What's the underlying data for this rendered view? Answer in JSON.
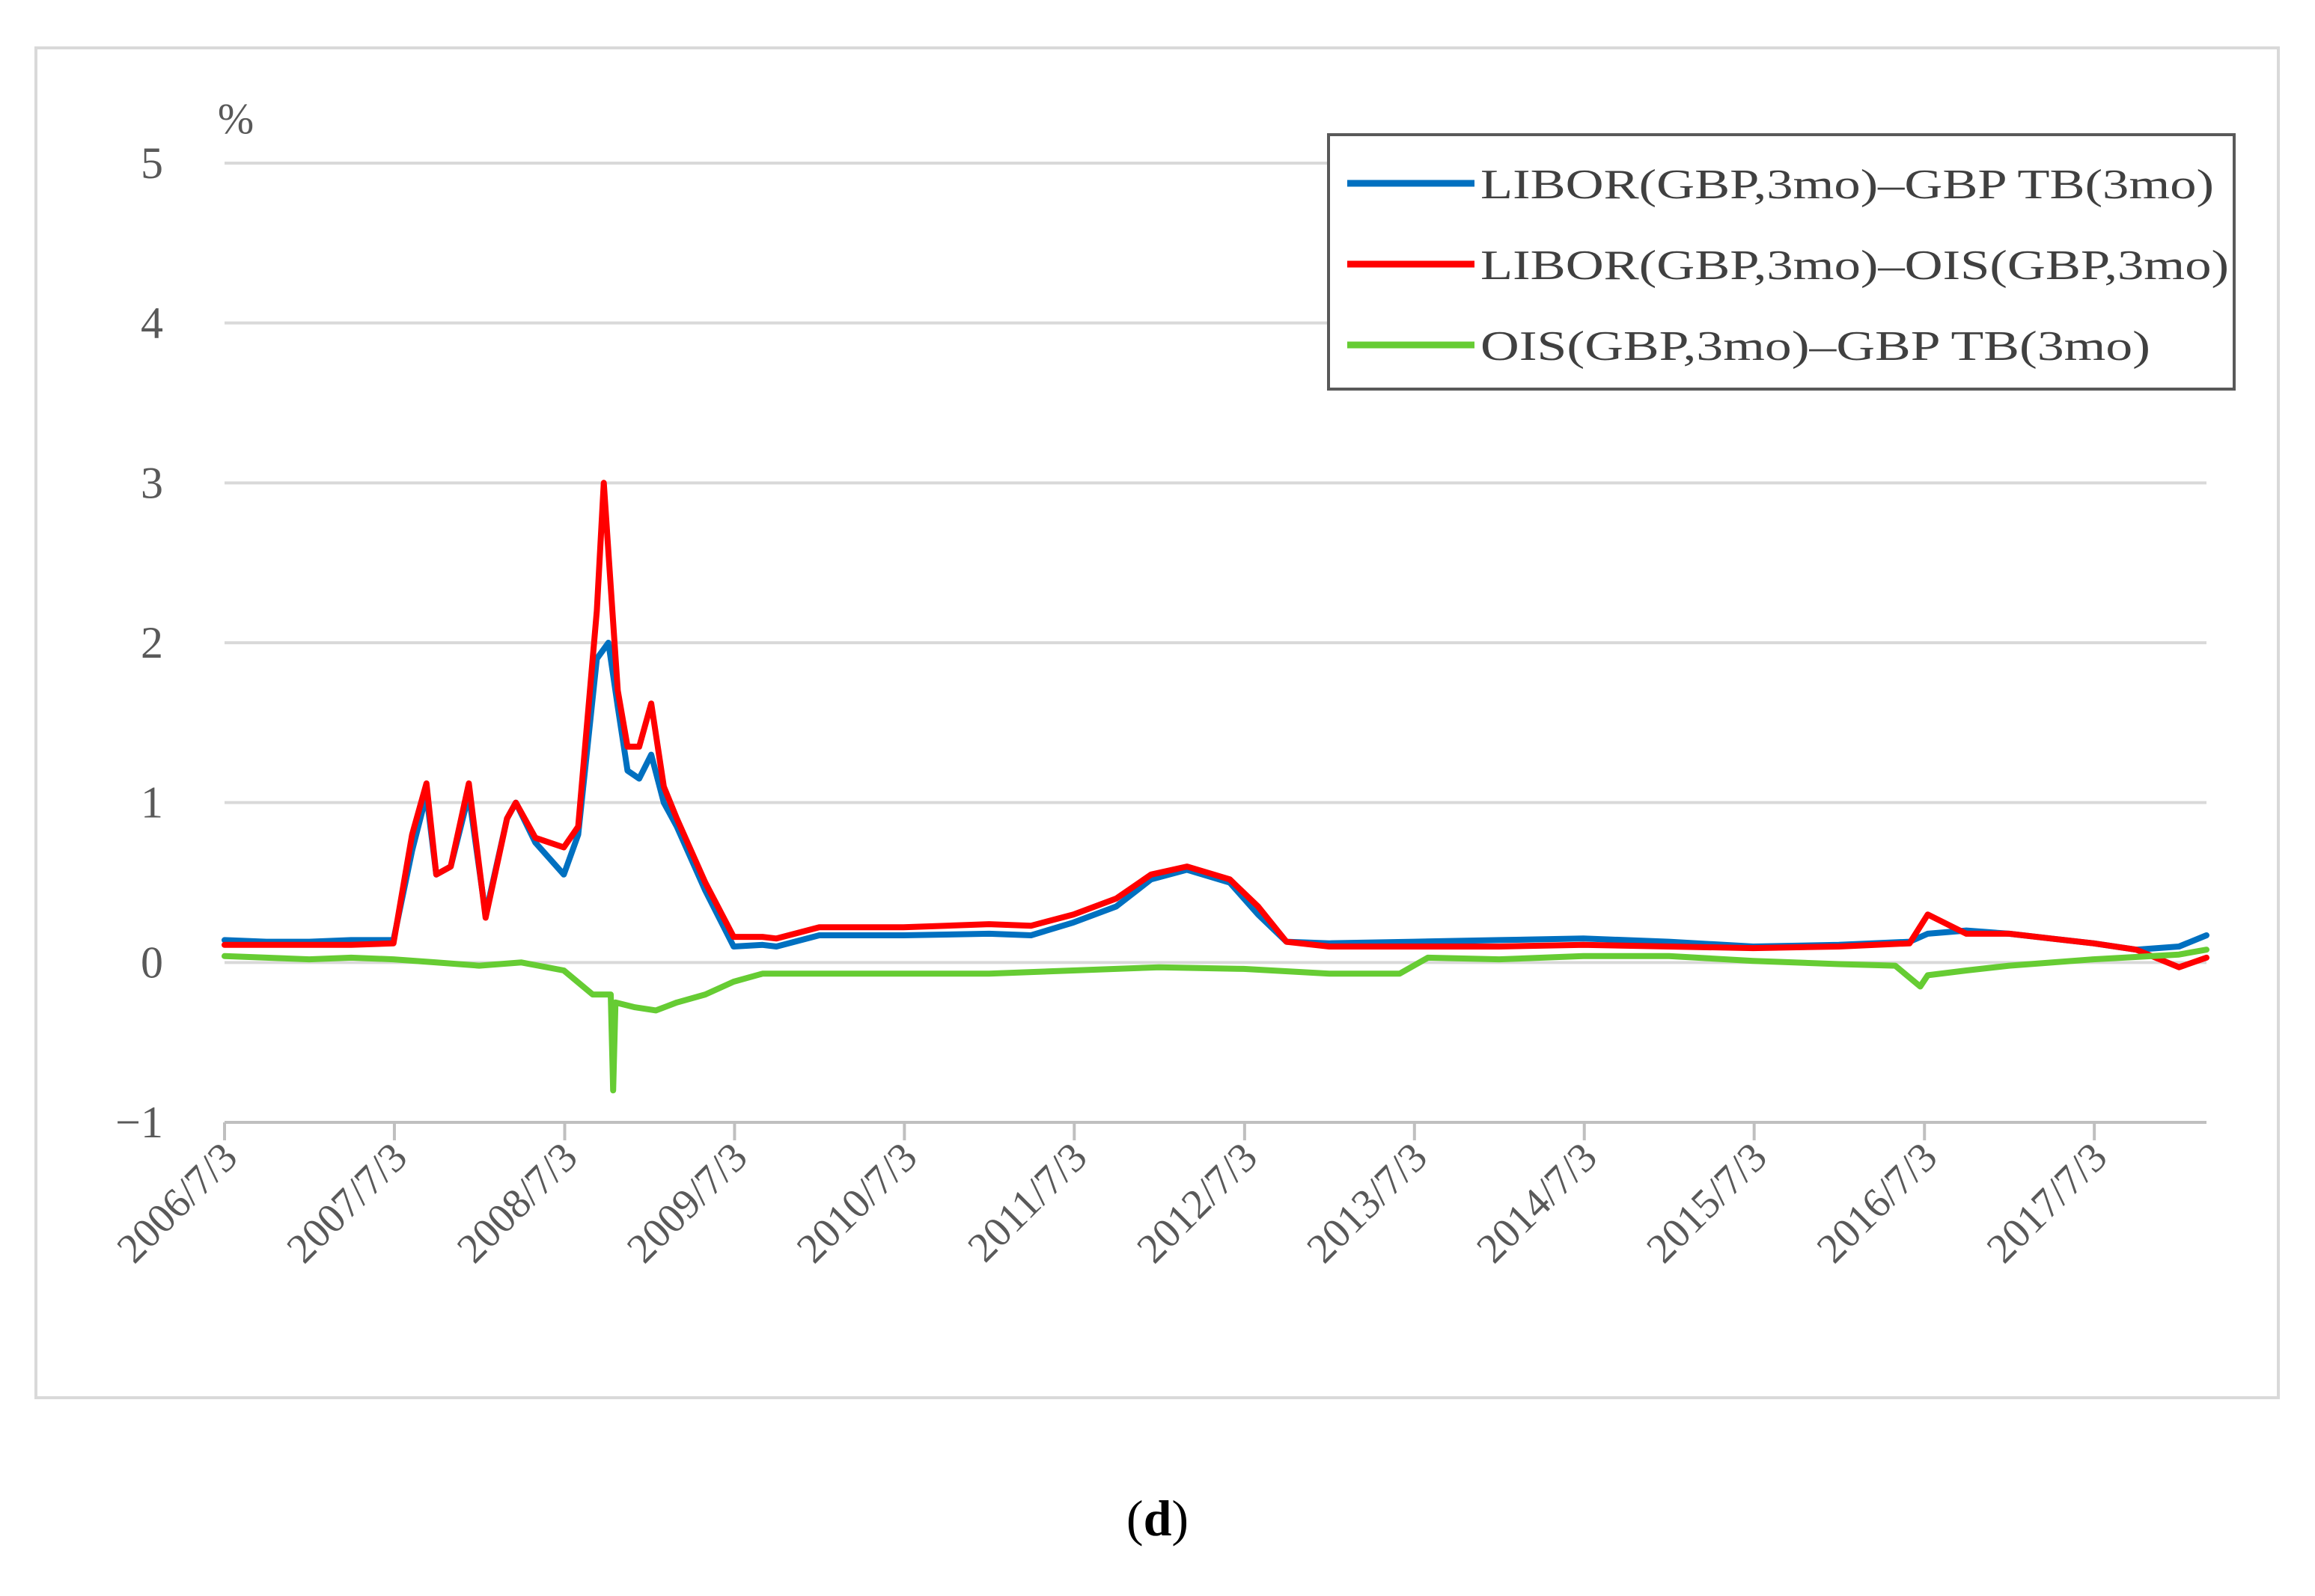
{
  "caption": {
    "open": "(",
    "letter": "d",
    "close": ")"
  },
  "chart_data": {
    "type": "line",
    "y_unit": "%",
    "ylim": [
      -1,
      5
    ],
    "yticks": [
      "−1",
      "0",
      "1",
      "2",
      "3",
      "4",
      "5"
    ],
    "xlim": [
      "2006/7/3",
      "2018/3/1"
    ],
    "xticks": [
      "2006/7/3",
      "2007/7/3",
      "2008/7/3",
      "2009/7/3",
      "2010/7/3",
      "2011/7/3",
      "2012/7/3",
      "2013/7/3",
      "2014/7/3",
      "2015/7/3",
      "2016/7/3",
      "2017/7/3"
    ],
    "grid": true,
    "legend_position": "top-right",
    "series": [
      {
        "name": "LIBOR(GBP,3mo)–GBP TB(3mo)",
        "color": "#0070C0",
        "x": [
          "2006/7/3",
          "2006/10/1",
          "2007/1/1",
          "2007/4/1",
          "2007/7/1",
          "2007/8/10",
          "2007/9/10",
          "2007/10/1",
          "2007/11/1",
          "2007/12/10",
          "2008/1/15",
          "2008/3/1",
          "2008/3/20",
          "2008/5/1",
          "2008/7/1",
          "2008/8/1",
          "2008/9/10",
          "2008/10/5",
          "2008/10/25",
          "2008/11/15",
          "2008/12/10",
          "2009/1/5",
          "2009/2/1",
          "2009/3/1",
          "2009/5/1",
          "2009/7/1",
          "2009/9/1",
          "2009/10/1",
          "2010/1/1",
          "2010/4/1",
          "2010/7/1",
          "2011/1/1",
          "2011/4/1",
          "2011/7/1",
          "2011/10/1",
          "2011/12/15",
          "2012/3/1",
          "2012/6/1",
          "2012/8/1",
          "2012/10/1",
          "2013/1/1",
          "2013/7/1",
          "2014/1/1",
          "2014/7/1",
          "2015/1/1",
          "2015/7/1",
          "2016/1/1",
          "2016/6/1",
          "2016/7/10",
          "2016/10/1",
          "2017/1/1",
          "2017/4/1",
          "2017/7/1",
          "2017/10/1",
          "2018/1/1",
          "2018/3/1"
        ],
        "y": [
          0.14,
          0.13,
          0.13,
          0.14,
          0.14,
          0.7,
          1.05,
          0.55,
          0.6,
          1.05,
          0.3,
          0.9,
          1.0,
          0.75,
          0.55,
          0.8,
          1.9,
          2.0,
          1.6,
          1.2,
          1.15,
          1.3,
          1.0,
          0.85,
          0.45,
          0.1,
          0.11,
          0.1,
          0.17,
          0.17,
          0.17,
          0.18,
          0.17,
          0.25,
          0.35,
          0.52,
          0.58,
          0.5,
          0.3,
          0.13,
          0.12,
          0.13,
          0.14,
          0.15,
          0.13,
          0.1,
          0.11,
          0.13,
          0.18,
          0.2,
          0.18,
          0.15,
          0.12,
          0.08,
          0.1,
          0.17
        ]
      },
      {
        "name": "LIBOR(GBP,3mo)–OIS(GBP,3mo)",
        "color": "#FF0000",
        "x": [
          "2006/7/3",
          "2006/10/1",
          "2007/1/1",
          "2007/4/1",
          "2007/7/1",
          "2007/8/10",
          "2007/9/10",
          "2007/10/1",
          "2007/11/1",
          "2007/12/10",
          "2008/1/15",
          "2008/3/1",
          "2008/3/20",
          "2008/5/1",
          "2008/7/1",
          "2008/8/1",
          "2008/9/10",
          "2008/9/25",
          "2008/10/10",
          "2008/10/25",
          "2008/11/15",
          "2008/12/10",
          "2009/1/5",
          "2009/2/1",
          "2009/3/1",
          "2009/5/1",
          "2009/7/1",
          "2009/9/1",
          "2009/10/1",
          "2010/1/1",
          "2010/4/1",
          "2010/7/1",
          "2011/1/1",
          "2011/4/1",
          "2011/7/1",
          "2011/10/1",
          "2011/12/15",
          "2012/3/1",
          "2012/6/1",
          "2012/8/1",
          "2012/10/1",
          "2013/1/1",
          "2013/7/1",
          "2014/1/1",
          "2014/7/1",
          "2015/1/1",
          "2015/7/1",
          "2016/1/1",
          "2016/6/1",
          "2016/7/10",
          "2016/10/1",
          "2017/1/1",
          "2017/4/1",
          "2017/7/1",
          "2017/10/1",
          "2018/1/1",
          "2018/3/1"
        ],
        "y": [
          0.11,
          0.11,
          0.11,
          0.11,
          0.12,
          0.8,
          1.12,
          0.55,
          0.6,
          1.12,
          0.28,
          0.9,
          1.0,
          0.78,
          0.72,
          0.85,
          2.2,
          3.0,
          2.35,
          1.7,
          1.35,
          1.35,
          1.62,
          1.1,
          0.9,
          0.5,
          0.16,
          0.16,
          0.15,
          0.22,
          0.22,
          0.22,
          0.24,
          0.23,
          0.3,
          0.4,
          0.55,
          0.6,
          0.52,
          0.35,
          0.13,
          0.1,
          0.1,
          0.1,
          0.11,
          0.1,
          0.09,
          0.1,
          0.12,
          0.3,
          0.18,
          0.18,
          0.15,
          0.12,
          0.08,
          -0.03,
          0.03
        ]
      },
      {
        "name": "OIS(GBP,3mo)–GBP TB(3mo)",
        "color": "#66CC33",
        "x": [
          "2006/7/3",
          "2006/10/1",
          "2007/1/1",
          "2007/4/1",
          "2007/7/1",
          "2007/10/1",
          "2008/1/1",
          "2008/4/1",
          "2008/7/1",
          "2008/9/1",
          "2008/10/10",
          "2008/10/15",
          "2008/10/20",
          "2008/12/1",
          "2009/1/15",
          "2009/3/1",
          "2009/5/1",
          "2009/7/1",
          "2009/9/1",
          "2010/1/1",
          "2010/7/1",
          "2011/1/1",
          "2011/7/1",
          "2012/1/1",
          "2012/7/1",
          "2013/1/1",
          "2013/6/1",
          "2013/8/1",
          "2014/1/1",
          "2014/7/1",
          "2015/1/1",
          "2015/7/1",
          "2016/1/1",
          "2016/5/1",
          "2016/6/24",
          "2016/7/10",
          "2016/10/1",
          "2017/1/1",
          "2017/7/1",
          "2018/1/1",
          "2018/3/1"
        ],
        "y": [
          0.04,
          0.03,
          0.02,
          0.03,
          0.02,
          0.0,
          -0.02,
          0.0,
          -0.05,
          -0.2,
          -0.2,
          -0.8,
          -0.25,
          -0.28,
          -0.3,
          -0.25,
          -0.2,
          -0.12,
          -0.07,
          -0.07,
          -0.07,
          -0.07,
          -0.05,
          -0.03,
          -0.04,
          -0.07,
          -0.07,
          0.03,
          0.02,
          0.04,
          0.04,
          0.01,
          -0.01,
          -0.02,
          -0.15,
          -0.08,
          -0.05,
          -0.02,
          0.02,
          0.05,
          0.08
        ]
      }
    ]
  }
}
